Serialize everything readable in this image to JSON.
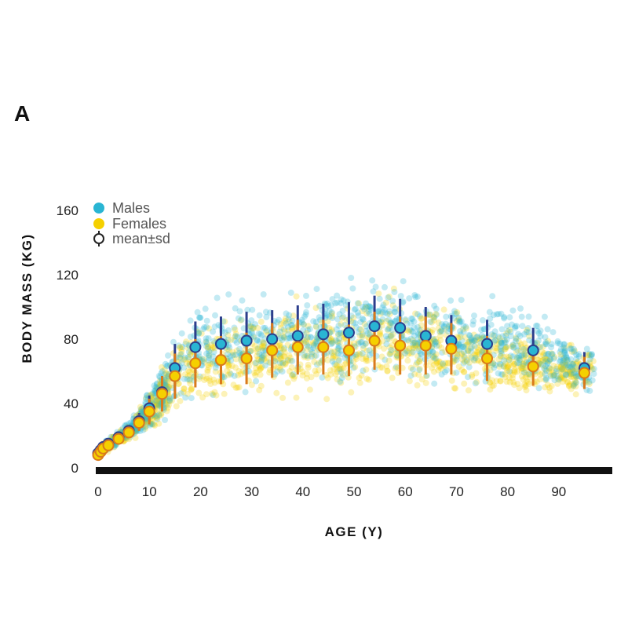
{
  "panel_label": "A",
  "chart_data": {
    "type": "scatter",
    "xlabel": "AGE (Y)",
    "ylabel": "BODY MASS (KG)",
    "xlim": [
      0,
      100
    ],
    "ylim": [
      0,
      180
    ],
    "x_ticks": [
      0,
      10,
      20,
      30,
      40,
      50,
      60,
      70,
      80,
      90
    ],
    "y_ticks": [
      0,
      40,
      80,
      120,
      160
    ],
    "grid": false,
    "legend_position": "top-left",
    "legend": [
      {
        "label": "Males",
        "marker": "filled-circle",
        "color": "#29b5d3"
      },
      {
        "label": "Females",
        "marker": "filled-circle",
        "color": "#f5d000"
      },
      {
        "label": "mean±sd",
        "marker": "open-circle-with-bar",
        "color": "#222222"
      }
    ],
    "series": [
      {
        "name": "Males",
        "color": "#29b5d3",
        "mean_edge_color": "#2c3e8c",
        "x": [
          0,
          0.5,
          1,
          2,
          4,
          6,
          8,
          10,
          12.5,
          15,
          19,
          24,
          29,
          34,
          39,
          44,
          49,
          54,
          59,
          64,
          69,
          76,
          85,
          95
        ],
        "mean": [
          9,
          11,
          13,
          15,
          19,
          23,
          29,
          37,
          47,
          62,
          75,
          77,
          79,
          80,
          82,
          83,
          84,
          88,
          87,
          82,
          79,
          77,
          73,
          62
        ],
        "sd": [
          1.5,
          1.5,
          2,
          2,
          2.5,
          3.5,
          5,
          8,
          10,
          15,
          16,
          17,
          18,
          18,
          19,
          19,
          19,
          19,
          18,
          18,
          16,
          15,
          14,
          10
        ]
      },
      {
        "name": "Females",
        "color": "#f5d000",
        "mean_edge_color": "#d97a1c",
        "x": [
          0,
          0.5,
          1,
          2,
          4,
          6,
          8,
          10,
          12.5,
          15,
          19,
          24,
          29,
          34,
          39,
          44,
          49,
          54,
          59,
          64,
          69,
          76,
          85,
          95
        ],
        "mean": [
          8,
          10,
          12,
          14,
          18,
          22,
          28,
          35,
          46,
          57,
          65,
          67,
          68,
          73,
          75,
          75,
          73,
          79,
          76,
          76,
          74,
          68,
          63,
          59
        ],
        "sd": [
          1.5,
          1.5,
          2,
          2,
          2.5,
          3.5,
          5,
          8,
          11,
          14,
          15,
          15,
          16,
          17,
          17,
          17,
          16,
          18,
          18,
          18,
          16,
          14,
          12,
          10
        ]
      }
    ]
  }
}
